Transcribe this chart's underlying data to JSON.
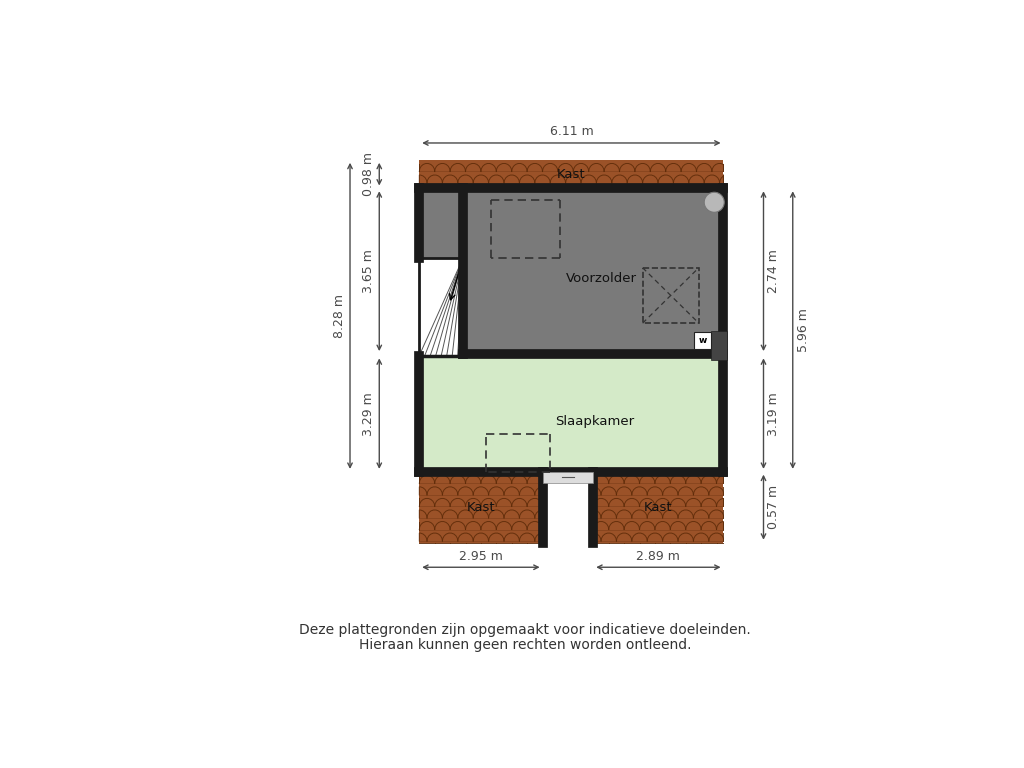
{
  "disclaimer_line1": "Deze plattegronden zijn opgemaakt voor indicatieve doeleinden.",
  "disclaimer_line2": "Hieraan kunnen geen rechten worden ontleend.",
  "bg_color": "#ffffff",
  "roof_color": "#7a3a1a",
  "voorzolder_color": "#7a7a7a",
  "slaapkamer_color": "#d4eac8",
  "wall_color": "#1a1a1a",
  "dim_color": "#4a4a4a",
  "top_dim": "6.11 m",
  "left_dim_total": "8.28 m",
  "left_dim_top2": "0.98 m",
  "left_dim_top": "3.65 m",
  "left_dim_bot": "3.29 m",
  "right_dim_top": "2.74 m",
  "right_dim_bot": "3.19 m",
  "right_dim_bot2": "0.57 m",
  "right_dim_mid": "5.96 m",
  "bottom_dim_left": "2.95 m",
  "bottom_dim_right": "2.89 m",
  "label_voorzolder": "Voorzolder",
  "label_slaapkamer": "Slaapkamer",
  "label_kast_top": "Kast",
  "label_kast_botleft": "Kast",
  "label_kast_botright": "Kast"
}
